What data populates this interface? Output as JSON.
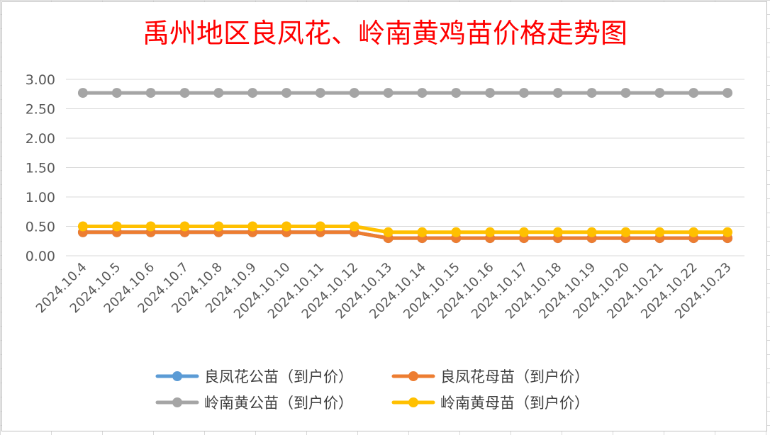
{
  "chart_data": {
    "type": "line",
    "title": "禹州地区良凤花、岭南黄鸡苗价格走势图",
    "xlabel": "",
    "ylabel": "",
    "ylim": [
      0,
      3
    ],
    "yticks": [
      "3.00",
      "2.50",
      "2.00",
      "1.50",
      "1.00",
      "0.50",
      "0.00"
    ],
    "ytick_values": [
      3.0,
      2.5,
      2.0,
      1.5,
      1.0,
      0.5,
      0.0
    ],
    "grid": true,
    "legend_position": "bottom",
    "categories": [
      "2024.10.4",
      "2024.10.5",
      "2024.10.6",
      "2024.10.7",
      "2024.10.8",
      "2024.10.9",
      "2024.10.10",
      "2024.10.11",
      "2024.10.12",
      "2024.10.13",
      "2024.10.14",
      "2024.10.15",
      "2024.10.16",
      "2024.10.17",
      "2024.10.18",
      "2024.10.19",
      "2024.10.20",
      "2024.10.21",
      "2024.10.22",
      "2024.10.23"
    ],
    "series": [
      {
        "name": "良凤花公苗（到户价）",
        "color": "#5b9bd5",
        "values": [
          0.4,
          0.4,
          0.4,
          0.4,
          0.4,
          0.4,
          0.4,
          0.4,
          0.4,
          0.3,
          0.3,
          0.3,
          0.3,
          0.3,
          0.3,
          0.3,
          0.3,
          0.3,
          0.3,
          0.3
        ]
      },
      {
        "name": "良凤花母苗（到户价）",
        "color": "#ed7d31",
        "values": [
          0.4,
          0.4,
          0.4,
          0.4,
          0.4,
          0.4,
          0.4,
          0.4,
          0.4,
          0.3,
          0.3,
          0.3,
          0.3,
          0.3,
          0.3,
          0.3,
          0.3,
          0.3,
          0.3,
          0.3
        ]
      },
      {
        "name": "岭南黄公苗（到户价）",
        "color": "#a5a5a5",
        "values": [
          2.77,
          2.77,
          2.77,
          2.77,
          2.77,
          2.77,
          2.77,
          2.77,
          2.77,
          2.77,
          2.77,
          2.77,
          2.77,
          2.77,
          2.77,
          2.77,
          2.77,
          2.77,
          2.77,
          2.77
        ]
      },
      {
        "name": "岭南黄母苗（到户价）",
        "color": "#ffc000",
        "values": [
          0.5,
          0.5,
          0.5,
          0.5,
          0.5,
          0.5,
          0.5,
          0.5,
          0.5,
          0.4,
          0.4,
          0.4,
          0.4,
          0.4,
          0.4,
          0.4,
          0.4,
          0.4,
          0.4,
          0.4
        ]
      }
    ]
  }
}
